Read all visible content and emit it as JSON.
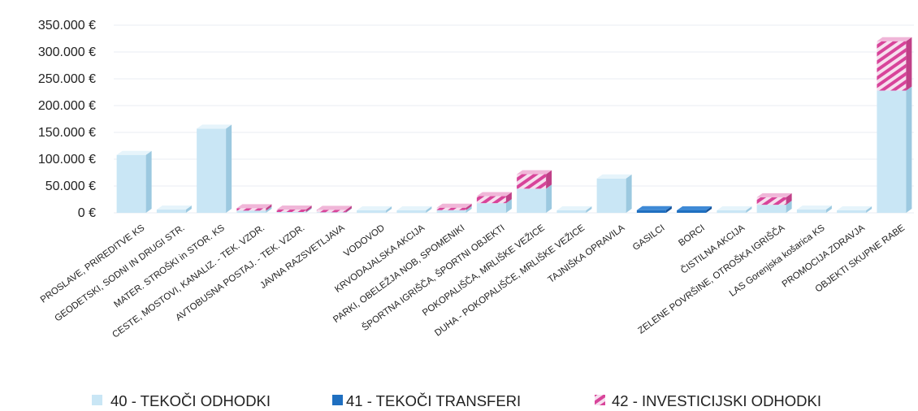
{
  "chart_data": {
    "type": "bar",
    "stacked": true,
    "style": "3d-column",
    "title": "",
    "xlabel": "",
    "ylabel": "",
    "ylim": [
      0,
      350000
    ],
    "y_ticks": [
      "350.000 €",
      "300.000 €",
      "250.000 €",
      "200.000 €",
      "150.000 €",
      "100.000 €",
      "50.000 €",
      "0 €"
    ],
    "grid": true,
    "legend_position": "bottom",
    "categories": [
      "PROSLAVE, PRIREDITVE KS",
      "GEODETSKI, SODNI IN DRUGI STR.",
      "MATER. STROŠKI in STOR. KS",
      "CESTE, MOSTOVI, KANALIZ. - TEK. VZDR.",
      "AVTOBUSNA POSTAJ. - TEK. VZDR.",
      "JAVNA RAZSVETLJAVA",
      "VODOVOD",
      "KRVODAJALSKA AKCIJA",
      "PARKI, OBELEŽJA NOB, SPOMENIKI",
      "ŠPORTNA IGRIŠČA, ŠPORTNI OBJEKTI",
      "POKOPALIŠČA, MRLIŠKE VEŽICE",
      "DUHA - POKOPALIŠČE, MRLIŠKE VEŽICE",
      "TAJNIŠKA OPRAVILA",
      "GASILCI",
      "BORCI",
      "ČISTILNA AKCIJA",
      "ZELENE POVRŠINE, OTROŠKA IGRIŠČA",
      "LAS Gorenjska košarica KS",
      "PROMOCIJA ZDRAVJA",
      "OBJEKTI SKUPNE RABE"
    ],
    "series": [
      {
        "name": "40 - TEKOČI ODHODKI",
        "color": "#c9e6f5",
        "values": [
          108000,
          6000,
          157000,
          4000,
          1500,
          1000,
          1500,
          2000,
          5000,
          18000,
          45000,
          4000,
          64000,
          0,
          0,
          3000,
          15000,
          6000,
          1500,
          228000
        ]
      },
      {
        "name": "41 - TEKOČI TRANSFERI",
        "color": "#1f6fc0",
        "values": [
          0,
          0,
          0,
          0,
          0,
          0,
          0,
          0,
          0,
          0,
          0,
          0,
          0,
          5000,
          3000,
          0,
          0,
          0,
          0,
          0
        ]
      },
      {
        "name": "42 - INVESTICIJSKI ODHODKI",
        "color": "#d8449a",
        "values": [
          0,
          0,
          0,
          3000,
          500,
          500,
          0,
          0,
          1000,
          13000,
          27000,
          0,
          0,
          0,
          0,
          0,
          14000,
          0,
          0,
          92000
        ]
      }
    ]
  },
  "colors": {
    "grid": "#e8eef3",
    "text": "#222222",
    "tekoci_side": "#9cc9e0",
    "tekoci_top": "#e6f4fb",
    "transfer_side": "#15539a",
    "investicije_bg": "#f3dcea"
  }
}
